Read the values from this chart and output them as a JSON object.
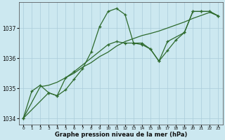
{
  "bg_color": "#cce8f0",
  "grid_color": "#aaccda",
  "line_color": "#2d6a2d",
  "marker_color": "#2d6a2d",
  "xlabel": "Graphe pression niveau de la mer (hPa)",
  "ylim": [
    1033.8,
    1037.85
  ],
  "xlim": [
    -0.5,
    23.5
  ],
  "yticks": [
    1034,
    1035,
    1036,
    1037
  ],
  "xticks": [
    0,
    1,
    2,
    3,
    4,
    5,
    6,
    7,
    8,
    9,
    10,
    11,
    12,
    13,
    14,
    15,
    16,
    17,
    18,
    19,
    20,
    21,
    22,
    23
  ],
  "series1": [
    [
      0,
      1034.0
    ],
    [
      1,
      1034.9
    ],
    [
      2,
      1035.1
    ],
    [
      3,
      1034.85
    ],
    [
      4,
      1034.75
    ],
    [
      5,
      1034.95
    ],
    [
      6,
      1035.3
    ],
    [
      7,
      1035.65
    ],
    [
      8,
      1036.2
    ],
    [
      9,
      1037.05
    ],
    [
      10,
      1037.55
    ],
    [
      11,
      1037.65
    ],
    [
      12,
      1037.45
    ],
    [
      13,
      1036.5
    ],
    [
      14,
      1036.45
    ],
    [
      15,
      1036.3
    ],
    [
      16,
      1035.9
    ],
    [
      17,
      1036.25
    ],
    [
      18,
      1036.6
    ],
    [
      19,
      1036.85
    ],
    [
      20,
      1037.55
    ],
    [
      21,
      1037.55
    ],
    [
      22,
      1037.55
    ],
    [
      23,
      1037.4
    ]
  ],
  "series2": [
    [
      0,
      1034.0
    ],
    [
      2,
      1035.05
    ],
    [
      3,
      1035.1
    ],
    [
      4,
      1035.2
    ],
    [
      5,
      1035.35
    ],
    [
      6,
      1035.5
    ],
    [
      7,
      1035.7
    ],
    [
      8,
      1035.85
    ],
    [
      9,
      1036.05
    ],
    [
      10,
      1036.2
    ],
    [
      11,
      1036.4
    ],
    [
      12,
      1036.55
    ],
    [
      13,
      1036.65
    ],
    [
      14,
      1036.75
    ],
    [
      15,
      1036.82
    ],
    [
      16,
      1036.9
    ],
    [
      17,
      1037.0
    ],
    [
      18,
      1037.1
    ],
    [
      19,
      1037.2
    ],
    [
      20,
      1037.32
    ],
    [
      21,
      1037.42
    ],
    [
      22,
      1037.52
    ],
    [
      23,
      1037.4
    ]
  ],
  "series3": [
    [
      0,
      1034.0
    ],
    [
      3,
      1034.85
    ],
    [
      4,
      1034.75
    ],
    [
      5,
      1035.35
    ],
    [
      6,
      1035.55
    ],
    [
      10,
      1036.45
    ],
    [
      11,
      1036.55
    ],
    [
      12,
      1036.5
    ],
    [
      13,
      1036.5
    ],
    [
      14,
      1036.5
    ],
    [
      15,
      1036.3
    ],
    [
      16,
      1035.9
    ],
    [
      17,
      1036.55
    ],
    [
      19,
      1036.85
    ],
    [
      20,
      1037.55
    ],
    [
      21,
      1037.55
    ],
    [
      22,
      1037.55
    ],
    [
      23,
      1037.4
    ]
  ]
}
